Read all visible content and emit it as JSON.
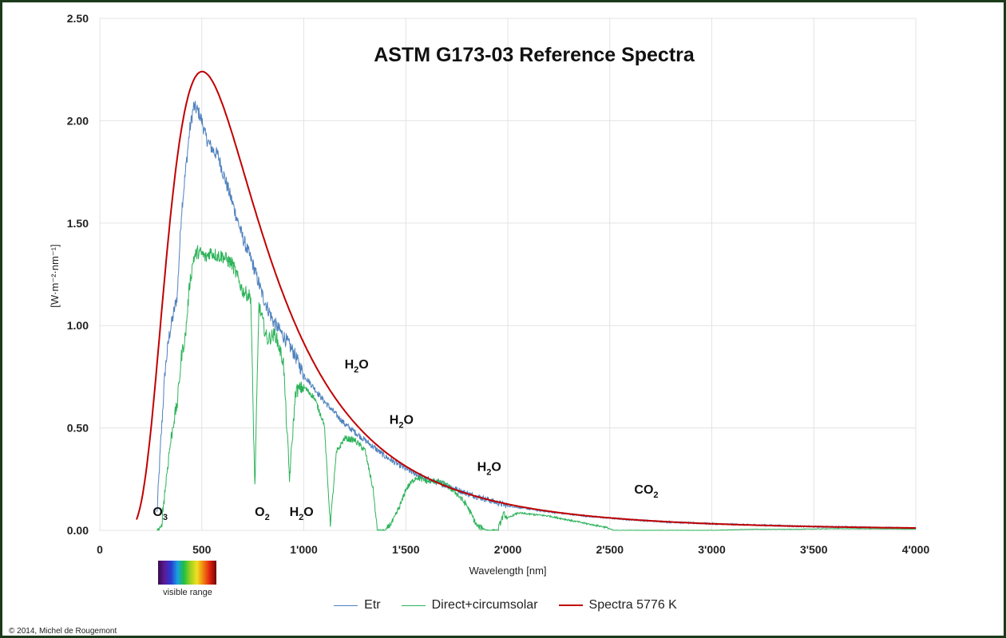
{
  "chart_data": {
    "type": "line",
    "title": "ASTM G173-03 Reference Spectra",
    "xlabel": "Wavelength [nm]",
    "ylabel": "[W·m⁻²·nm⁻¹]",
    "xlim": [
      0,
      4000
    ],
    "ylim": [
      0,
      2.5
    ],
    "x_ticks": [
      0,
      500,
      1000,
      1500,
      2000,
      2500,
      3000,
      3500,
      4000
    ],
    "x_tick_labels": [
      "0",
      "500",
      "1'000",
      "1'500",
      "2'000",
      "2'500",
      "3'000",
      "3'500",
      "4'000"
    ],
    "y_ticks": [
      0,
      0.5,
      1.0,
      1.5,
      2.0,
      2.5
    ],
    "y_tick_labels": [
      "0.00",
      "0.50",
      "1.00",
      "1.50",
      "2.00",
      "2.50"
    ],
    "grid": true,
    "legend_position": "bottom",
    "series": [
      {
        "name": "Etr",
        "color": "#4f81bd",
        "points": [
          [
            280,
            0.08
          ],
          [
            300,
            0.45
          ],
          [
            320,
            0.78
          ],
          [
            340,
            0.95
          ],
          [
            360,
            1.05
          ],
          [
            380,
            1.15
          ],
          [
            400,
            1.55
          ],
          [
            420,
            1.75
          ],
          [
            440,
            1.95
          ],
          [
            460,
            2.07
          ],
          [
            480,
            2.05
          ],
          [
            500,
            2.0
          ],
          [
            520,
            1.92
          ],
          [
            540,
            1.88
          ],
          [
            560,
            1.85
          ],
          [
            580,
            1.83
          ],
          [
            600,
            1.76
          ],
          [
            650,
            1.6
          ],
          [
            700,
            1.43
          ],
          [
            750,
            1.3
          ],
          [
            800,
            1.14
          ],
          [
            850,
            1.02
          ],
          [
            900,
            0.95
          ],
          [
            950,
            0.87
          ],
          [
            1000,
            0.76
          ],
          [
            1100,
            0.63
          ],
          [
            1200,
            0.52
          ],
          [
            1300,
            0.44
          ],
          [
            1400,
            0.36
          ],
          [
            1500,
            0.3
          ],
          [
            1600,
            0.25
          ],
          [
            1700,
            0.22
          ],
          [
            1800,
            0.18
          ],
          [
            1900,
            0.15
          ],
          [
            2000,
            0.12
          ],
          [
            2200,
            0.09
          ],
          [
            2400,
            0.068
          ],
          [
            2600,
            0.052
          ],
          [
            2800,
            0.04
          ],
          [
            3000,
            0.032
          ],
          [
            3500,
            0.018
          ],
          [
            4000,
            0.011
          ]
        ]
      },
      {
        "name": "Direct+circumsolar",
        "color": "#2db35a",
        "points": [
          [
            280,
            0
          ],
          [
            300,
            0.01
          ],
          [
            320,
            0.2
          ],
          [
            340,
            0.38
          ],
          [
            360,
            0.52
          ],
          [
            380,
            0.62
          ],
          [
            400,
            0.85
          ],
          [
            420,
            0.95
          ],
          [
            440,
            1.2
          ],
          [
            460,
            1.33
          ],
          [
            480,
            1.36
          ],
          [
            500,
            1.35
          ],
          [
            520,
            1.33
          ],
          [
            540,
            1.36
          ],
          [
            560,
            1.35
          ],
          [
            580,
            1.34
          ],
          [
            600,
            1.34
          ],
          [
            650,
            1.3
          ],
          [
            700,
            1.17
          ],
          [
            740,
            1.14
          ],
          [
            760,
            0.2
          ],
          [
            780,
            1.1
          ],
          [
            820,
            0.93
          ],
          [
            860,
            0.96
          ],
          [
            900,
            0.82
          ],
          [
            930,
            0.25
          ],
          [
            960,
            0.68
          ],
          [
            1000,
            0.7
          ],
          [
            1050,
            0.65
          ],
          [
            1100,
            0.52
          ],
          [
            1130,
            0.03
          ],
          [
            1160,
            0.38
          ],
          [
            1200,
            0.45
          ],
          [
            1250,
            0.44
          ],
          [
            1300,
            0.39
          ],
          [
            1340,
            0.2
          ],
          [
            1360,
            0.0
          ],
          [
            1400,
            0.0
          ],
          [
            1440,
            0.05
          ],
          [
            1480,
            0.14
          ],
          [
            1500,
            0.2
          ],
          [
            1550,
            0.26
          ],
          [
            1600,
            0.24
          ],
          [
            1650,
            0.24
          ],
          [
            1700,
            0.22
          ],
          [
            1750,
            0.18
          ],
          [
            1800,
            0.12
          ],
          [
            1850,
            0.02
          ],
          [
            1900,
            0.0
          ],
          [
            1950,
            0.0
          ],
          [
            1980,
            0.08
          ],
          [
            2000,
            0.06
          ],
          [
            2050,
            0.085
          ],
          [
            2100,
            0.08
          ],
          [
            2200,
            0.07
          ],
          [
            2300,
            0.05
          ],
          [
            2400,
            0.03
          ],
          [
            2480,
            0.015
          ],
          [
            2520,
            0.0
          ],
          [
            2600,
            0.0
          ],
          [
            3000,
            0.0
          ],
          [
            3200,
            0.005
          ],
          [
            3400,
            0.005
          ],
          [
            3600,
            0.008
          ],
          [
            3800,
            0.007
          ],
          [
            4000,
            0.006
          ]
        ]
      },
      {
        "name": "Spectra 5776 K",
        "color": "#c00000",
        "type": "blackbody",
        "temperature_K": 5776,
        "peak_value": 2.24,
        "x_range": [
          180,
          4000
        ]
      }
    ],
    "annotations": [
      {
        "base": "O",
        "sub": "3",
        "x": 260,
        "y": 0.07
      },
      {
        "base": "O",
        "sub": "2",
        "x": 760,
        "y": 0.07
      },
      {
        "base": "H",
        "sub": "2",
        "tail": "O",
        "x": 930,
        "y": 0.07
      },
      {
        "base": "H",
        "sub": "2",
        "tail": "O",
        "x": 1200,
        "y": 0.79
      },
      {
        "base": "H",
        "sub": "2",
        "tail": "O",
        "x": 1420,
        "y": 0.52
      },
      {
        "base": "H",
        "sub": "2",
        "tail": "O",
        "x": 1850,
        "y": 0.29
      },
      {
        "base": "CO",
        "sub": "2",
        "x": 2620,
        "y": 0.18
      }
    ]
  },
  "visible_range_label": "visible range",
  "copyright": "© 2014, Michel de Rougemont"
}
